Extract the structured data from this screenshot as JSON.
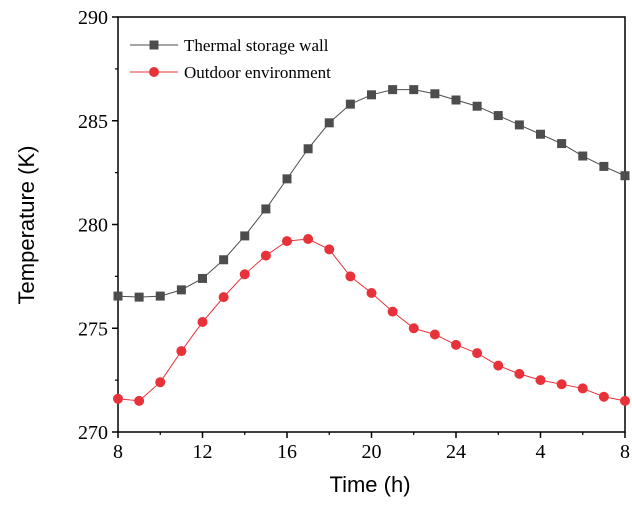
{
  "chart_data": {
    "type": "line",
    "xlabel": "Time (h)",
    "ylabel": "Temperature (K)",
    "categories": [
      8,
      null,
      null,
      null,
      12,
      null,
      null,
      null,
      16,
      null,
      null,
      null,
      20,
      null,
      null,
      null,
      24,
      null,
      null,
      null,
      4,
      null,
      null,
      null,
      8
    ],
    "series": [
      {
        "name": "Thermal storage wall",
        "color": "#4d4d4d",
        "marker": "square",
        "values": [
          276.55,
          276.5,
          276.55,
          276.85,
          277.4,
          278.3,
          279.45,
          280.75,
          282.2,
          283.65,
          284.9,
          285.8,
          286.25,
          286.5,
          286.5,
          286.3,
          286.0,
          285.7,
          285.25,
          284.8,
          284.35,
          283.9,
          283.3,
          282.8,
          282.35
        ]
      },
      {
        "name": "Outdoor environment",
        "color": "#e8323a",
        "marker": "circle",
        "values": [
          271.6,
          271.5,
          272.4,
          273.9,
          275.3,
          276.5,
          277.6,
          278.5,
          279.2,
          279.3,
          278.8,
          277.5,
          276.7,
          275.8,
          275.0,
          274.7,
          274.2,
          273.8,
          273.2,
          272.8,
          272.5,
          272.3,
          272.1,
          271.7,
          271.5
        ]
      }
    ],
    "ylim": [
      270,
      290
    ],
    "yticks": [
      270,
      275,
      280,
      285,
      290
    ],
    "legend": "upper left",
    "grid": false
  }
}
